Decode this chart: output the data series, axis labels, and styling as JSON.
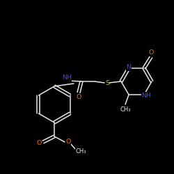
{
  "background_color": "#000000",
  "bond_color": "#e8e8e8",
  "atom_colors": {
    "O": "#ff6600",
    "N": "#4444ff",
    "S": "#cccc00",
    "C": "#e8e8e8"
  },
  "lw": 1.1,
  "fs": 6.8,
  "fs_small": 6.0,
  "xlim": [
    0,
    250
  ],
  "ylim": [
    0,
    250
  ]
}
